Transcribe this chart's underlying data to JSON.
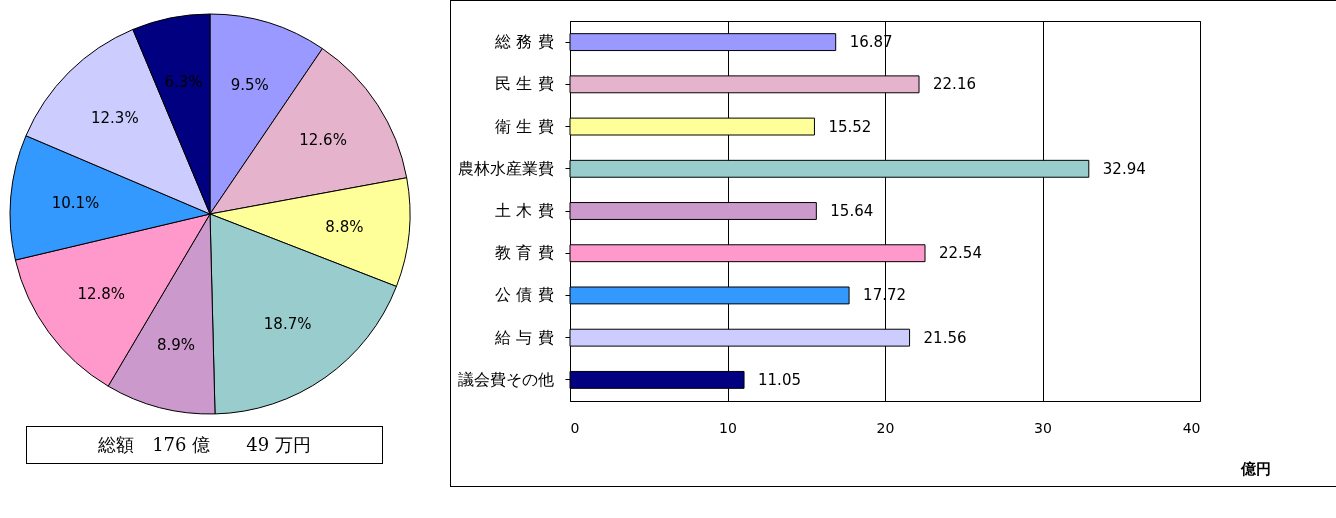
{
  "chart_data": [
    {
      "type": "pie",
      "categories": [
        null,
        null,
        null,
        null,
        null,
        null,
        null,
        null,
        null
      ],
      "values": [
        9.5,
        12.6,
        8.8,
        18.7,
        8.9,
        12.8,
        10.1,
        12.3,
        6.3
      ],
      "value_labels": [
        "9.5%",
        "12.6%",
        "8.8%",
        "18.7%",
        "8.9%",
        "12.8%",
        "10.1%",
        "12.3%",
        "6.3%"
      ],
      "colors": [
        "#9999ff",
        "#e6b3cc",
        "#ffff99",
        "#99cccc",
        "#cc99cc",
        "#ff99cc",
        "#3399ff",
        "#ccccff",
        "#000080"
      ],
      "annotations": [
        "総額　176 億　　49 万円"
      ],
      "legend": false
    },
    {
      "type": "bar",
      "orientation": "horizontal",
      "categories": [
        "総 務 費",
        "民 生 費",
        "衛 生 費",
        "農林水産業費",
        "土 木 費",
        "教 育 費",
        "公 債 費",
        "給 与 費",
        "議会費その他"
      ],
      "values": [
        16.87,
        22.16,
        15.52,
        32.94,
        15.64,
        22.54,
        17.72,
        21.56,
        11.05
      ],
      "colors": [
        "#9999ff",
        "#e6b3cc",
        "#ffff99",
        "#99cccc",
        "#cc99cc",
        "#ff99cc",
        "#3399ff",
        "#ccccff",
        "#000080"
      ],
      "xlim": [
        0,
        40
      ],
      "xticks": [
        0,
        10,
        20,
        30,
        40
      ],
      "xlabel": "億円",
      "grid": "x",
      "data_labels": true,
      "legend": false
    }
  ]
}
